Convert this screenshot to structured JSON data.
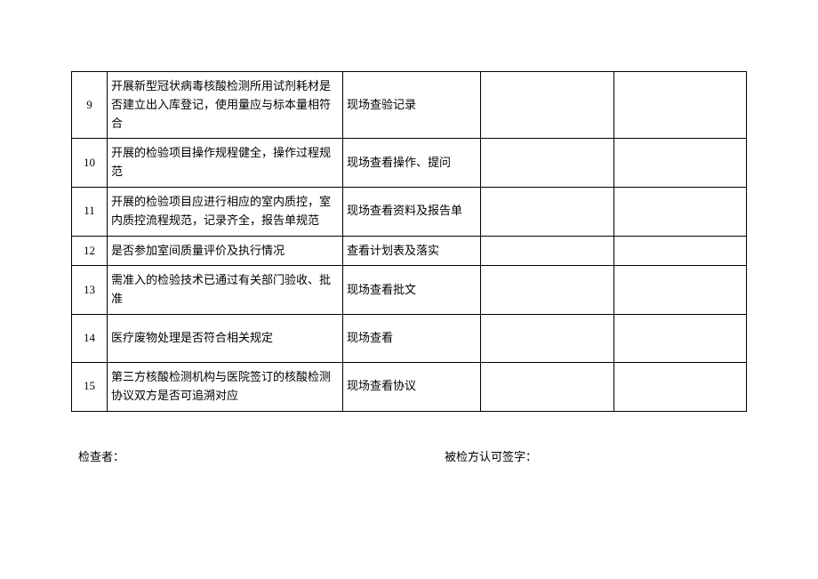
{
  "table": {
    "rows": [
      {
        "num": "9",
        "desc": "开展新型冠状病毒核酸检测所用试剂耗材是否建立出入库登记，使用量应与标本量相符合",
        "method": "现场查验记录",
        "rowclass": "tall"
      },
      {
        "num": "10",
        "desc": "开展的检验项目操作规程健全，操作过程规范",
        "method": "现场查看操作、提问",
        "rowclass": "med"
      },
      {
        "num": "11",
        "desc": "开展的检验项目应进行相应的室内质控，室内质控流程规范，记录齐全，报告单规范",
        "method": "现场查看资料及报告单",
        "rowclass": "med"
      },
      {
        "num": "12",
        "desc": "是否参加室间质量评价及执行情况",
        "method": "查看计划表及落实",
        "rowclass": "short"
      },
      {
        "num": "13",
        "desc": "需准入的检验技术已通过有关部门验收、批准",
        "method": "现场查看批文",
        "rowclass": "med"
      },
      {
        "num": "14",
        "desc": "医疗废物处理是否符合相关规定",
        "method": "现场查看",
        "rowclass": "tall"
      },
      {
        "num": "15",
        "desc": "第三方核酸检测机构与医院签订的核酸检测协议双方是否可追溯对应",
        "method": "现场查看协议",
        "rowclass": "med"
      }
    ]
  },
  "signature": {
    "checker": "检查者：",
    "confirm": "被检方认可签字："
  }
}
